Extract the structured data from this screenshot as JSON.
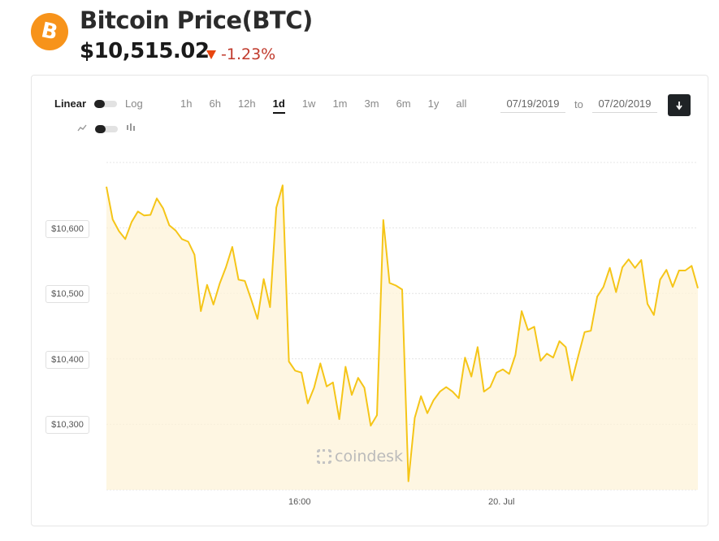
{
  "header": {
    "logo_symbol": "B",
    "title": "Bitcoin Price",
    "ticker": "(BTC)",
    "price": "$10,515.02",
    "change": "-1.23%",
    "change_direction_icon": "down-triangle-icon",
    "brand_color": "#f7931a",
    "negative_color": "#c0392b"
  },
  "controls": {
    "scale_linear": "Linear",
    "scale_log": "Log",
    "ranges": [
      "1h",
      "6h",
      "12h",
      "1d",
      "1w",
      "1m",
      "3m",
      "6m",
      "1y",
      "all"
    ],
    "active_range": "1d",
    "date_from": "07/19/2019",
    "to_label": "to",
    "date_to": "07/20/2019",
    "download_icon": "download-icon"
  },
  "chart_data": {
    "type": "area",
    "y_tick_labels": [
      "$10,600",
      "$10,500",
      "$10,400",
      "$10,300"
    ],
    "y_ticks": [
      10600,
      10500,
      10400,
      10300
    ],
    "ylim": [
      10200,
      10700
    ],
    "x_tick_labels": [
      "16:00",
      "20. Jul"
    ],
    "grid": true,
    "line_color": "#f5c518",
    "fill_color": "#fdf3d8",
    "watermark": "coindesk",
    "values": [
      10663,
      10613,
      10595,
      10583,
      10609,
      10625,
      10619,
      10620,
      10645,
      10630,
      10604,
      10596,
      10583,
      10579,
      10559,
      10473,
      10513,
      10483,
      10515,
      10540,
      10571,
      10521,
      10519,
      10491,
      10461,
      10522,
      10479,
      10631,
      10665,
      10396,
      10382,
      10379,
      10332,
      10356,
      10393,
      10358,
      10364,
      10308,
      10388,
      10345,
      10371,
      10356,
      10298,
      10314,
      10612,
      10516,
      10512,
      10506,
      10213,
      10310,
      10343,
      10317,
      10337,
      10350,
      10357,
      10350,
      10340,
      10402,
      10373,
      10418,
      10350,
      10357,
      10379,
      10384,
      10377,
      10406,
      10473,
      10444,
      10449,
      10397,
      10408,
      10402,
      10427,
      10418,
      10367,
      10405,
      10441,
      10443,
      10495,
      10510,
      10539,
      10502,
      10540,
      10552,
      10539,
      10551,
      10484,
      10467,
      10521,
      10536,
      10510,
      10535,
      10535,
      10542,
      10508
    ]
  }
}
